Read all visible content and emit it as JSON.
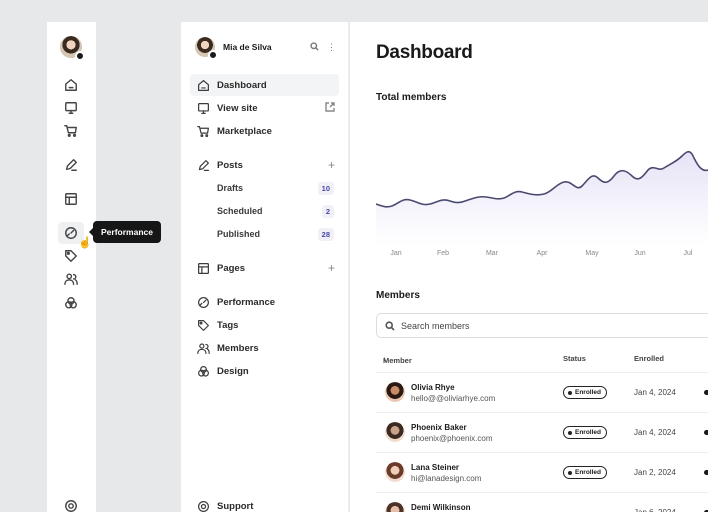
{
  "tooltip": {
    "text": "Performance"
  },
  "user": {
    "name": "Mia de Silva"
  },
  "nav": {
    "dashboard": "Dashboard",
    "view_site": "View site",
    "marketplace": "Marketplace",
    "posts": "Posts",
    "drafts": "Drafts",
    "drafts_count": "10",
    "scheduled": "Scheduled",
    "scheduled_count": "2",
    "published": "Published",
    "published_count": "28",
    "pages": "Pages",
    "performance": "Performance",
    "tags": "Tags",
    "members": "Members",
    "design": "Design",
    "support": "Support"
  },
  "main": {
    "title": "Dashboard",
    "chart_title": "Total members",
    "members_title": "Members",
    "search_placeholder": "Search members"
  },
  "chart_data": {
    "type": "area",
    "title": "Total members",
    "categories": [
      "Jan",
      "Feb",
      "Mar",
      "Apr",
      "May",
      "Jun",
      "Jul"
    ],
    "y_axis_labels": "none",
    "grid": false,
    "legend": "none",
    "colors": {
      "line": "#4a4a70",
      "fill": "#ece9f7"
    }
  },
  "table": {
    "headers": {
      "member": "Member",
      "status": "Status",
      "enrolled": "Enrolled"
    },
    "rows": [
      {
        "name": "Olivia Rhye",
        "email": "hello@@oliviarhye.com",
        "status": "Enrolled",
        "date": "Jan 4, 2024"
      },
      {
        "name": "Phoenix Baker",
        "email": "phoenix@phoenix.com",
        "status": "Enrolled",
        "date": "Jan 4, 2024"
      },
      {
        "name": "Lana Steiner",
        "email": "hi@lanadesign.com",
        "status": "Enrolled",
        "date": "Jan 2, 2024"
      },
      {
        "name": "Demi Wilkinson",
        "email": "",
        "status": "",
        "date": "Jan 6, 2024"
      }
    ]
  }
}
